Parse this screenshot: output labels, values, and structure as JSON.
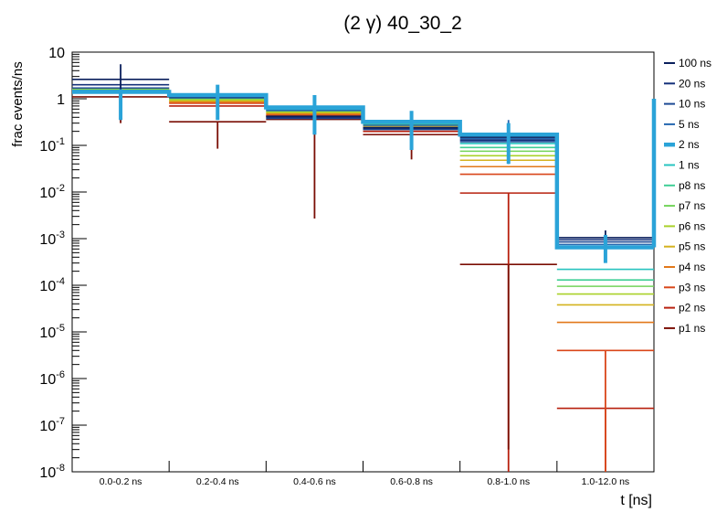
{
  "chart_data": {
    "type": "line",
    "title": "(2 γ) 40_30_2",
    "xlabel": "t [ns]",
    "ylabel": "frac events/ns",
    "yscale": "log",
    "ylim": [
      1e-08,
      10
    ],
    "grid": false,
    "legend_position": "right",
    "categories": [
      "0.0-0.2 ns",
      "0.2-0.4 ns",
      "0.4-0.6 ns",
      "0.6-0.8 ns",
      "0.8-1.0 ns",
      "1.0-12.0 ns"
    ],
    "y_ticks": [
      {
        "base": "10",
        "exp": "-8",
        "value": 1e-08
      },
      {
        "base": "10",
        "exp": "-7",
        "value": 1e-07
      },
      {
        "base": "10",
        "exp": "-6",
        "value": 1e-06
      },
      {
        "base": "10",
        "exp": "-5",
        "value": 1e-05
      },
      {
        "base": "10",
        "exp": "-4",
        "value": 0.0001
      },
      {
        "base": "10",
        "exp": "-3",
        "value": 0.001
      },
      {
        "base": "10",
        "exp": "-2",
        "value": 0.01
      },
      {
        "base": "10",
        "exp": "-1",
        "value": 0.1
      },
      {
        "base": "1",
        "exp": "",
        "value": 1
      },
      {
        "base": "10",
        "exp": "",
        "value": 10
      }
    ],
    "series": [
      {
        "name": "100 ns",
        "color": "#0a1f5c",
        "thick": false,
        "values": [
          2.6,
          1.15,
          0.42,
          0.24,
          0.15,
          0.00105
        ]
      },
      {
        "name": "20 ns",
        "color": "#14307a",
        "thick": false,
        "values": [
          2.0,
          1.1,
          0.4,
          0.23,
          0.13,
          0.00095
        ]
      },
      {
        "name": "10 ns",
        "color": "#1d4a94",
        "thick": false,
        "values": [
          1.7,
          1.05,
          0.38,
          0.22,
          0.12,
          0.00085
        ]
      },
      {
        "name": "5 ns",
        "color": "#2567b0",
        "thick": false,
        "values": [
          1.5,
          1.1,
          0.56,
          0.27,
          0.14,
          0.00075
        ]
      },
      {
        "name": "2 ns",
        "color": "#2aa3d8",
        "thick": true,
        "values": [
          1.4,
          1.2,
          0.65,
          0.32,
          0.17,
          0.00065
        ]
      },
      {
        "name": "1 ns",
        "color": "#28c4c0",
        "thick": false,
        "values": [
          1.45,
          1.1,
          0.6,
          0.3,
          0.11,
          0.00022
        ]
      },
      {
        "name": "p8 ns",
        "color": "#3fcf96",
        "thick": false,
        "values": [
          1.5,
          1.05,
          0.58,
          0.29,
          0.09,
          0.00013
        ]
      },
      {
        "name": "p7 ns",
        "color": "#72d45a",
        "thick": false,
        "values": [
          1.55,
          1.0,
          0.55,
          0.28,
          0.075,
          9.5e-05
        ]
      },
      {
        "name": "p6 ns",
        "color": "#a9d12a",
        "thick": false,
        "values": [
          1.6,
          0.95,
          0.52,
          0.27,
          0.06,
          6.5e-05
        ]
      },
      {
        "name": "p5 ns",
        "color": "#d4b21e",
        "thick": false,
        "values": [
          1.65,
          0.9,
          0.5,
          0.26,
          0.048,
          3.8e-05
        ]
      },
      {
        "name": "p4 ns",
        "color": "#e2781a",
        "thick": false,
        "values": [
          1.7,
          0.85,
          0.47,
          0.24,
          0.035,
          1.6e-05
        ]
      },
      {
        "name": "p3 ns",
        "color": "#d9461a",
        "thick": false,
        "values": [
          1.6,
          0.8,
          0.44,
          0.22,
          0.024,
          4e-06
        ]
      },
      {
        "name": "p2 ns",
        "color": "#b8200e",
        "thick": false,
        "values": [
          1.55,
          0.7,
          0.42,
          0.2,
          0.0095,
          2.3e-07
        ]
      },
      {
        "name": "p1 ns",
        "color": "#7a0e04",
        "thick": false,
        "values": [
          1.1,
          0.32,
          0.36,
          0.17,
          0.00028,
          0.0
        ]
      }
    ],
    "error_bars": [
      {
        "bin": 0,
        "color": "#7a0e04",
        "low": 0.3,
        "high": 1.1
      },
      {
        "bin": 1,
        "color": "#7a0e04",
        "low": 0.085,
        "high": 0.32
      },
      {
        "bin": 2,
        "color": "#7a0e04",
        "low": 0.0027,
        "high": 0.36
      },
      {
        "bin": 3,
        "color": "#7a0e04",
        "low": 0.05,
        "high": 0.17
      },
      {
        "bin": 4,
        "color": "#b8200e",
        "low": 0.0,
        "high": 0.0095
      },
      {
        "bin": 4,
        "color": "#7a0e04",
        "low": 3e-08,
        "high": 0.00028
      },
      {
        "bin": 5,
        "color": "#b8200e",
        "low": 1e-08,
        "high": 2.3e-07
      },
      {
        "bin": 5,
        "color": "#d9461a",
        "low": 1e-08,
        "high": 4e-06
      },
      {
        "bin": 0,
        "color": "#0a1f5c",
        "low": 1.0,
        "high": 5.5
      },
      {
        "bin": 4,
        "color": "#2567b0",
        "low": 0.04,
        "high": 0.35
      },
      {
        "bin": 5,
        "color": "#0a1f5c",
        "low": 0.0004,
        "high": 0.0015
      },
      {
        "bin": 0,
        "color": "#2aa3d8",
        "low": 0.35,
        "high": 1.6
      },
      {
        "bin": 1,
        "color": "#2aa3d8",
        "low": 0.35,
        "high": 2.0
      },
      {
        "bin": 2,
        "color": "#2aa3d8",
        "low": 0.17,
        "high": 1.2
      },
      {
        "bin": 3,
        "color": "#2aa3d8",
        "low": 0.08,
        "high": 0.55
      },
      {
        "bin": 4,
        "color": "#2aa3d8",
        "low": 0.04,
        "high": 0.3
      },
      {
        "bin": 5,
        "color": "#2aa3d8",
        "low": 0.0003,
        "high": 0.0012
      }
    ]
  }
}
